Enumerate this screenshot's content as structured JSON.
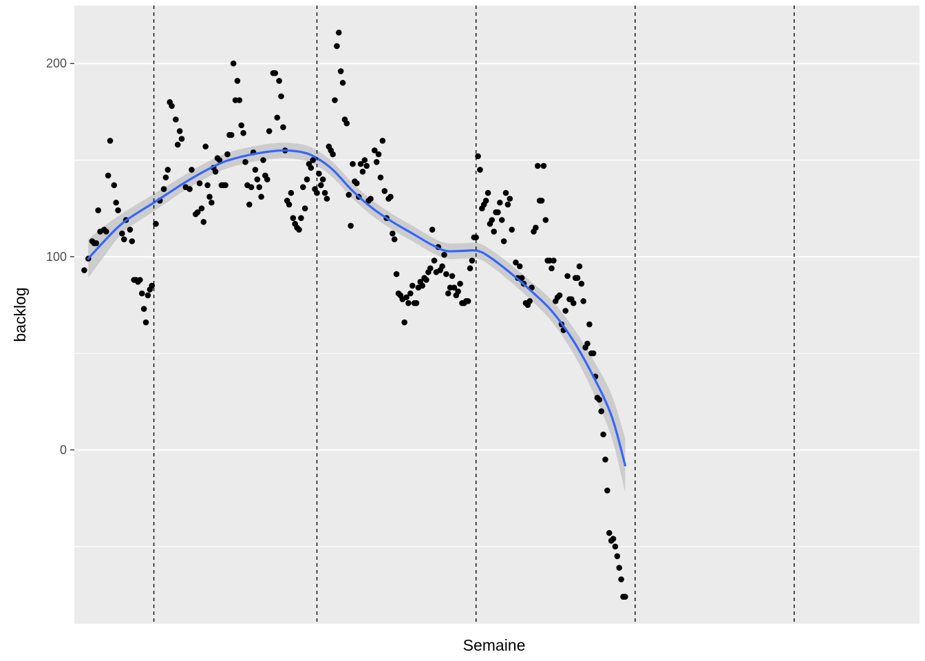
{
  "chart_data": {
    "type": "scatter",
    "title": "",
    "xlabel": "Semaine",
    "ylabel": "backlog",
    "ylim": [
      -90,
      230
    ],
    "xlim": [
      -5,
      420
    ],
    "x_ticks_shown": false,
    "y_ticks": [
      {
        "value": 0,
        "label": "0"
      },
      {
        "value": 100,
        "label": "100"
      },
      {
        "value": 200,
        "label": "200"
      }
    ],
    "y_minor_ticks": [
      -50,
      50,
      150
    ],
    "grid": true,
    "legend": "none",
    "colors": {
      "panel": "#EBEBEB",
      "grid": "#FFFFFF",
      "points": "#000000",
      "smooth_line": "#3366FF",
      "ribbon": "#C2C2C2",
      "vlines": "#000000"
    },
    "vlines_x": [
      35,
      117,
      197,
      277,
      357
    ],
    "points": [
      [
        0,
        93
      ],
      [
        2,
        99
      ],
      [
        4,
        108
      ],
      [
        5,
        107
      ],
      [
        6,
        107
      ],
      [
        7,
        124
      ],
      [
        8,
        113
      ],
      [
        10,
        114
      ],
      [
        11,
        113
      ],
      [
        12,
        142
      ],
      [
        13,
        160
      ],
      [
        15,
        137
      ],
      [
        16,
        128
      ],
      [
        17,
        124
      ],
      [
        19,
        112
      ],
      [
        20,
        109
      ],
      [
        21,
        119
      ],
      [
        23,
        114
      ],
      [
        24,
        108
      ],
      [
        25,
        88
      ],
      [
        26,
        88
      ],
      [
        27,
        87
      ],
      [
        28,
        88
      ],
      [
        29,
        81
      ],
      [
        30,
        73
      ],
      [
        31,
        66
      ],
      [
        32,
        80
      ],
      [
        33,
        83
      ],
      [
        34,
        85
      ],
      [
        36,
        117
      ],
      [
        38,
        129
      ],
      [
        40,
        135
      ],
      [
        41,
        141
      ],
      [
        42,
        145
      ],
      [
        43,
        180
      ],
      [
        44,
        178
      ],
      [
        46,
        171
      ],
      [
        47,
        158
      ],
      [
        48,
        165
      ],
      [
        49,
        161
      ],
      [
        51,
        136
      ],
      [
        53,
        135
      ],
      [
        54,
        145
      ],
      [
        56,
        122
      ],
      [
        57,
        123
      ],
      [
        58,
        138
      ],
      [
        59,
        125
      ],
      [
        60,
        118
      ],
      [
        61,
        157
      ],
      [
        62,
        137
      ],
      [
        63,
        131
      ],
      [
        64,
        128
      ],
      [
        65,
        146
      ],
      [
        66,
        144
      ],
      [
        67,
        151
      ],
      [
        68,
        150
      ],
      [
        69,
        137
      ],
      [
        70,
        137
      ],
      [
        71,
        137
      ],
      [
        72,
        153
      ],
      [
        73,
        163
      ],
      [
        74,
        163
      ],
      [
        75,
        200
      ],
      [
        76,
        181
      ],
      [
        77,
        191
      ],
      [
        78,
        181
      ],
      [
        79,
        168
      ],
      [
        80,
        164
      ],
      [
        81,
        149
      ],
      [
        82,
        137
      ],
      [
        83,
        127
      ],
      [
        84,
        136
      ],
      [
        85,
        154
      ],
      [
        86,
        145
      ],
      [
        87,
        140
      ],
      [
        88,
        136
      ],
      [
        89,
        131
      ],
      [
        90,
        150
      ],
      [
        91,
        142
      ],
      [
        92,
        140
      ],
      [
        93,
        165
      ],
      [
        95,
        195
      ],
      [
        96,
        195
      ],
      [
        97,
        172
      ],
      [
        98,
        191
      ],
      [
        99,
        183
      ],
      [
        100,
        167
      ],
      [
        101,
        155
      ],
      [
        102,
        129
      ],
      [
        103,
        127
      ],
      [
        104,
        133
      ],
      [
        105,
        120
      ],
      [
        106,
        117
      ],
      [
        107,
        115
      ],
      [
        108,
        114
      ],
      [
        109,
        120
      ],
      [
        110,
        136
      ],
      [
        111,
        125
      ],
      [
        112,
        140
      ],
      [
        113,
        148
      ],
      [
        114,
        146
      ],
      [
        115,
        150
      ],
      [
        116,
        135
      ],
      [
        117,
        133
      ],
      [
        118,
        143
      ],
      [
        119,
        137
      ],
      [
        120,
        140
      ],
      [
        121,
        133
      ],
      [
        122,
        130
      ],
      [
        123,
        157
      ],
      [
        124,
        155
      ],
      [
        125,
        153
      ],
      [
        126,
        181
      ],
      [
        127,
        209
      ],
      [
        128,
        216
      ],
      [
        129,
        196
      ],
      [
        130,
        190
      ],
      [
        131,
        171
      ],
      [
        132,
        169
      ],
      [
        133,
        132
      ],
      [
        134,
        116
      ],
      [
        135,
        148
      ],
      [
        136,
        139
      ],
      [
        137,
        138
      ],
      [
        138,
        131
      ],
      [
        139,
        148
      ],
      [
        140,
        144
      ],
      [
        141,
        150
      ],
      [
        142,
        147
      ],
      [
        143,
        129
      ],
      [
        144,
        130
      ],
      [
        146,
        155
      ],
      [
        147,
        149
      ],
      [
        148,
        153
      ],
      [
        149,
        141
      ],
      [
        150,
        160
      ],
      [
        151,
        134
      ],
      [
        152,
        120
      ],
      [
        153,
        130
      ],
      [
        154,
        131
      ],
      [
        155,
        112
      ],
      [
        156,
        109
      ],
      [
        157,
        91
      ],
      [
        158,
        81
      ],
      [
        159,
        80
      ],
      [
        160,
        78
      ],
      [
        161,
        66
      ],
      [
        162,
        79
      ],
      [
        163,
        76
      ],
      [
        164,
        81
      ],
      [
        165,
        85
      ],
      [
        166,
        76
      ],
      [
        167,
        76
      ],
      [
        168,
        84
      ],
      [
        169,
        87
      ],
      [
        170,
        85
      ],
      [
        171,
        89
      ],
      [
        172,
        88
      ],
      [
        173,
        92
      ],
      [
        174,
        94
      ],
      [
        175,
        114
      ],
      [
        176,
        98
      ],
      [
        177,
        92
      ],
      [
        178,
        105
      ],
      [
        179,
        93
      ],
      [
        180,
        95
      ],
      [
        181,
        101
      ],
      [
        182,
        91
      ],
      [
        183,
        81
      ],
      [
        184,
        84
      ],
      [
        185,
        90
      ],
      [
        186,
        84
      ],
      [
        187,
        80
      ],
      [
        188,
        82
      ],
      [
        189,
        86
      ],
      [
        190,
        76
      ],
      [
        191,
        76
      ],
      [
        192,
        77
      ],
      [
        193,
        77
      ],
      [
        194,
        94
      ],
      [
        195,
        98
      ],
      [
        196,
        110
      ],
      [
        197,
        110
      ],
      [
        198,
        152
      ],
      [
        199,
        145
      ],
      [
        200,
        125
      ],
      [
        201,
        127
      ],
      [
        202,
        129
      ],
      [
        203,
        133
      ],
      [
        204,
        117
      ],
      [
        205,
        119
      ],
      [
        206,
        113
      ],
      [
        207,
        123
      ],
      [
        208,
        123
      ],
      [
        209,
        128
      ],
      [
        210,
        119
      ],
      [
        211,
        108
      ],
      [
        212,
        133
      ],
      [
        213,
        127
      ],
      [
        214,
        130
      ],
      [
        215,
        114
      ],
      [
        217,
        97
      ],
      [
        218,
        89
      ],
      [
        219,
        95
      ],
      [
        220,
        89
      ],
      [
        221,
        86
      ],
      [
        222,
        76
      ],
      [
        223,
        75
      ],
      [
        224,
        77
      ],
      [
        225,
        84
      ],
      [
        226,
        113
      ],
      [
        227,
        115
      ],
      [
        228,
        147
      ],
      [
        229,
        129
      ],
      [
        230,
        129
      ],
      [
        231,
        147
      ],
      [
        232,
        119
      ],
      [
        233,
        98
      ],
      [
        234,
        98
      ],
      [
        235,
        94
      ],
      [
        236,
        98
      ],
      [
        237,
        77
      ],
      [
        238,
        79
      ],
      [
        239,
        80
      ],
      [
        240,
        65
      ],
      [
        241,
        62
      ],
      [
        242,
        72
      ],
      [
        243,
        90
      ],
      [
        244,
        78
      ],
      [
        245,
        78
      ],
      [
        246,
        76
      ],
      [
        247,
        89
      ],
      [
        248,
        89
      ],
      [
        249,
        95
      ],
      [
        250,
        86
      ],
      [
        251,
        77
      ],
      [
        252,
        53
      ],
      [
        253,
        55
      ],
      [
        254,
        65
      ],
      [
        255,
        50
      ],
      [
        256,
        50
      ],
      [
        257,
        38
      ],
      [
        258,
        27
      ],
      [
        259,
        26
      ],
      [
        260,
        20
      ],
      [
        261,
        8
      ],
      [
        262,
        -5
      ],
      [
        263,
        -21
      ],
      [
        264,
        -43
      ],
      [
        265,
        -47
      ],
      [
        266,
        -46
      ],
      [
        267,
        -50
      ],
      [
        268,
        -55
      ],
      [
        269,
        -61
      ],
      [
        270,
        -67
      ],
      [
        271,
        -76
      ],
      [
        272,
        -76
      ]
    ],
    "smooth_fit": [
      [
        2,
        99
      ],
      [
        10,
        108
      ],
      [
        20,
        118
      ],
      [
        35,
        128
      ],
      [
        50,
        138
      ],
      [
        60,
        144
      ],
      [
        70,
        149
      ],
      [
        80,
        152
      ],
      [
        90,
        154
      ],
      [
        100,
        155
      ],
      [
        110,
        154
      ],
      [
        117,
        151
      ],
      [
        125,
        145
      ],
      [
        135,
        134
      ],
      [
        145,
        125
      ],
      [
        155,
        118
      ],
      [
        165,
        112
      ],
      [
        175,
        106
      ],
      [
        182,
        103
      ],
      [
        190,
        103
      ],
      [
        198,
        103
      ],
      [
        205,
        99
      ],
      [
        215,
        91
      ],
      [
        225,
        82
      ],
      [
        235,
        72
      ],
      [
        245,
        58
      ],
      [
        255,
        40
      ],
      [
        265,
        18
      ],
      [
        272,
        -8
      ]
    ],
    "ribbon_halfwidth": [
      [
        2,
        10
      ],
      [
        20,
        5
      ],
      [
        50,
        4
      ],
      [
        100,
        4
      ],
      [
        150,
        4
      ],
      [
        198,
        4
      ],
      [
        230,
        5
      ],
      [
        250,
        7
      ],
      [
        265,
        11
      ],
      [
        272,
        14
      ]
    ]
  }
}
